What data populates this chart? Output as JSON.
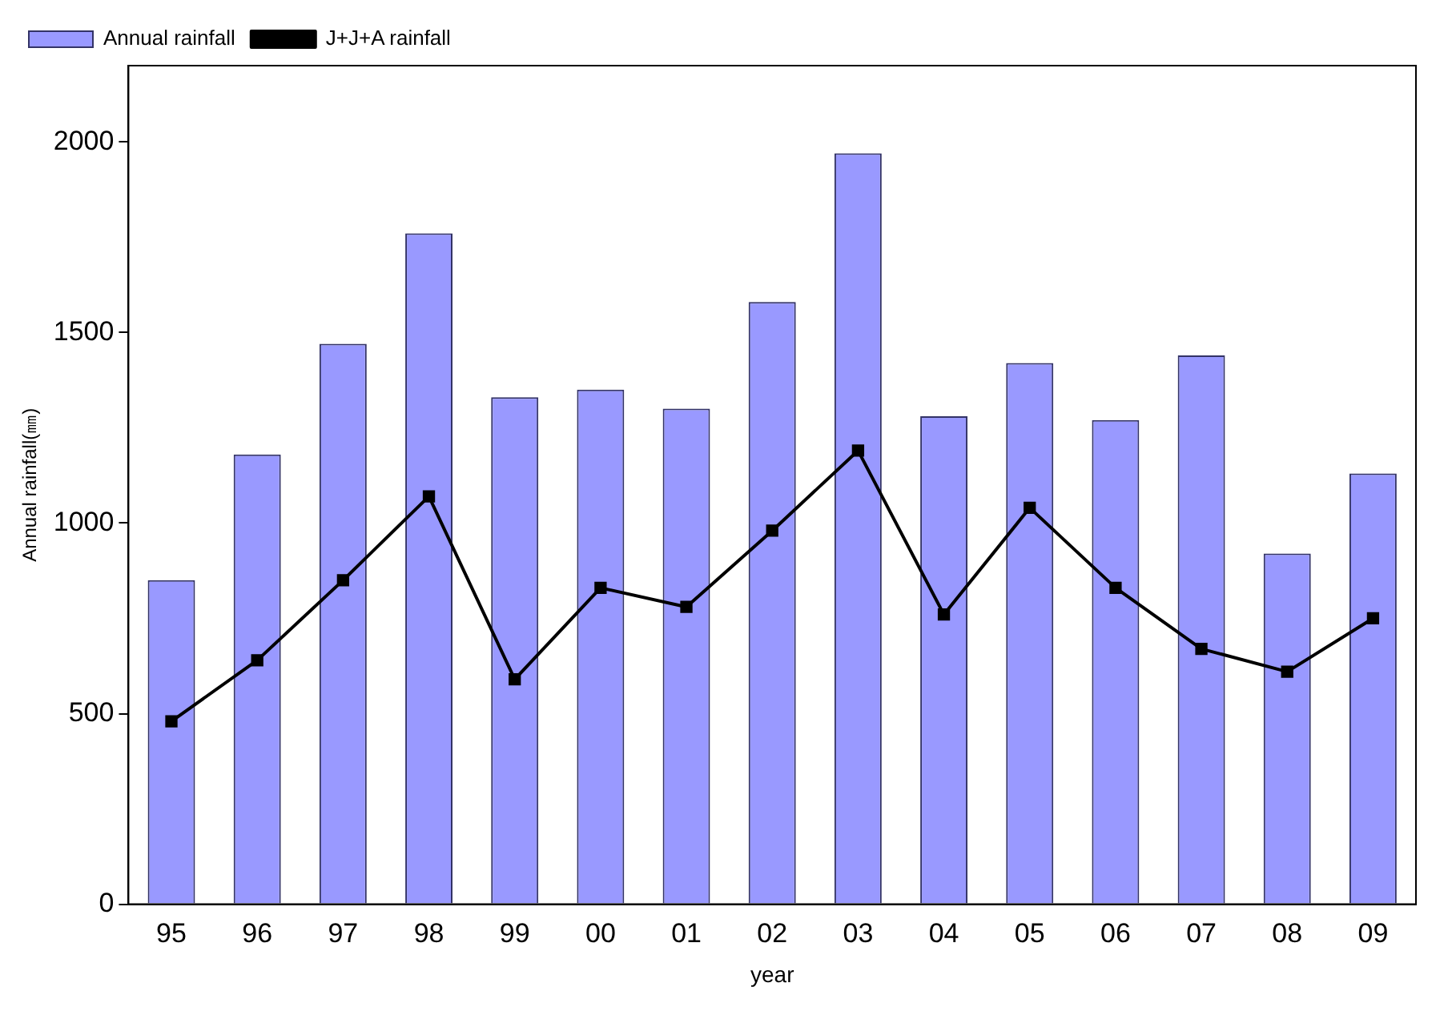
{
  "chart_data": {
    "type": "bar",
    "xlabel": "year",
    "ylabel": "Annual rainfall(㎜)",
    "categories": [
      "95",
      "96",
      "97",
      "98",
      "99",
      "00",
      "01",
      "02",
      "03",
      "04",
      "05",
      "06",
      "07",
      "08",
      "09"
    ],
    "series": [
      {
        "name": "Annual rainfall",
        "color": "#9999ff",
        "values": [
          850,
          1180,
          1470,
          1760,
          1330,
          1350,
          1300,
          1580,
          1970,
          1280,
          1420,
          1270,
          1440,
          920,
          1130
        ]
      },
      {
        "name": "J+J+A rainfall",
        "type": "line",
        "color": "#000000",
        "values": [
          480,
          640,
          850,
          1070,
          590,
          830,
          780,
          980,
          1190,
          760,
          1040,
          830,
          670,
          610,
          750
        ]
      }
    ],
    "ylim": [
      0,
      2200
    ],
    "yticks": [
      0,
      500,
      1000,
      1500,
      2000
    ],
    "grid": false,
    "legend": "top left",
    "marker": "square",
    "line_style": "solid"
  }
}
